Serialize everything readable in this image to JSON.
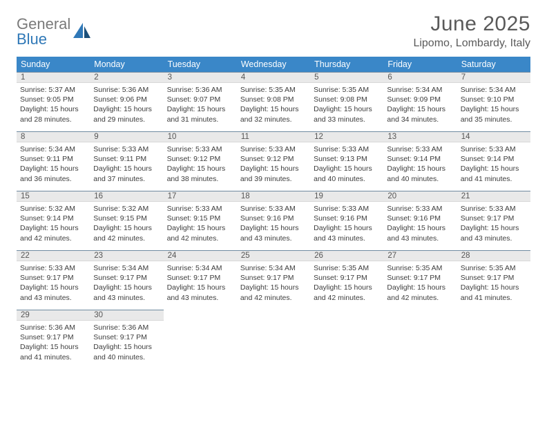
{
  "brand": {
    "word1": "General",
    "word2": "Blue",
    "word1_color": "#7a7a7a",
    "word2_color": "#2f78b7",
    "icon_color": "#2f78b7"
  },
  "header": {
    "month_title": "June 2025",
    "location": "Lipomo, Lombardy, Italy"
  },
  "colors": {
    "header_bg": "#3a87c8",
    "header_text": "#ffffff",
    "daynum_bg": "#e9e9e9",
    "daynum_border_top": "#6f8aa0",
    "body_text": "#3c3c3c",
    "page_bg": "#ffffff"
  },
  "weekdays": [
    "Sunday",
    "Monday",
    "Tuesday",
    "Wednesday",
    "Thursday",
    "Friday",
    "Saturday"
  ],
  "weeks": [
    [
      {
        "num": "1",
        "sunrise": "Sunrise: 5:37 AM",
        "sunset": "Sunset: 9:05 PM",
        "daylight": "Daylight: 15 hours and 28 minutes."
      },
      {
        "num": "2",
        "sunrise": "Sunrise: 5:36 AM",
        "sunset": "Sunset: 9:06 PM",
        "daylight": "Daylight: 15 hours and 29 minutes."
      },
      {
        "num": "3",
        "sunrise": "Sunrise: 5:36 AM",
        "sunset": "Sunset: 9:07 PM",
        "daylight": "Daylight: 15 hours and 31 minutes."
      },
      {
        "num": "4",
        "sunrise": "Sunrise: 5:35 AM",
        "sunset": "Sunset: 9:08 PM",
        "daylight": "Daylight: 15 hours and 32 minutes."
      },
      {
        "num": "5",
        "sunrise": "Sunrise: 5:35 AM",
        "sunset": "Sunset: 9:08 PM",
        "daylight": "Daylight: 15 hours and 33 minutes."
      },
      {
        "num": "6",
        "sunrise": "Sunrise: 5:34 AM",
        "sunset": "Sunset: 9:09 PM",
        "daylight": "Daylight: 15 hours and 34 minutes."
      },
      {
        "num": "7",
        "sunrise": "Sunrise: 5:34 AM",
        "sunset": "Sunset: 9:10 PM",
        "daylight": "Daylight: 15 hours and 35 minutes."
      }
    ],
    [
      {
        "num": "8",
        "sunrise": "Sunrise: 5:34 AM",
        "sunset": "Sunset: 9:11 PM",
        "daylight": "Daylight: 15 hours and 36 minutes."
      },
      {
        "num": "9",
        "sunrise": "Sunrise: 5:33 AM",
        "sunset": "Sunset: 9:11 PM",
        "daylight": "Daylight: 15 hours and 37 minutes."
      },
      {
        "num": "10",
        "sunrise": "Sunrise: 5:33 AM",
        "sunset": "Sunset: 9:12 PM",
        "daylight": "Daylight: 15 hours and 38 minutes."
      },
      {
        "num": "11",
        "sunrise": "Sunrise: 5:33 AM",
        "sunset": "Sunset: 9:12 PM",
        "daylight": "Daylight: 15 hours and 39 minutes."
      },
      {
        "num": "12",
        "sunrise": "Sunrise: 5:33 AM",
        "sunset": "Sunset: 9:13 PM",
        "daylight": "Daylight: 15 hours and 40 minutes."
      },
      {
        "num": "13",
        "sunrise": "Sunrise: 5:33 AM",
        "sunset": "Sunset: 9:14 PM",
        "daylight": "Daylight: 15 hours and 40 minutes."
      },
      {
        "num": "14",
        "sunrise": "Sunrise: 5:33 AM",
        "sunset": "Sunset: 9:14 PM",
        "daylight": "Daylight: 15 hours and 41 minutes."
      }
    ],
    [
      {
        "num": "15",
        "sunrise": "Sunrise: 5:32 AM",
        "sunset": "Sunset: 9:14 PM",
        "daylight": "Daylight: 15 hours and 42 minutes."
      },
      {
        "num": "16",
        "sunrise": "Sunrise: 5:32 AM",
        "sunset": "Sunset: 9:15 PM",
        "daylight": "Daylight: 15 hours and 42 minutes."
      },
      {
        "num": "17",
        "sunrise": "Sunrise: 5:33 AM",
        "sunset": "Sunset: 9:15 PM",
        "daylight": "Daylight: 15 hours and 42 minutes."
      },
      {
        "num": "18",
        "sunrise": "Sunrise: 5:33 AM",
        "sunset": "Sunset: 9:16 PM",
        "daylight": "Daylight: 15 hours and 43 minutes."
      },
      {
        "num": "19",
        "sunrise": "Sunrise: 5:33 AM",
        "sunset": "Sunset: 9:16 PM",
        "daylight": "Daylight: 15 hours and 43 minutes."
      },
      {
        "num": "20",
        "sunrise": "Sunrise: 5:33 AM",
        "sunset": "Sunset: 9:16 PM",
        "daylight": "Daylight: 15 hours and 43 minutes."
      },
      {
        "num": "21",
        "sunrise": "Sunrise: 5:33 AM",
        "sunset": "Sunset: 9:17 PM",
        "daylight": "Daylight: 15 hours and 43 minutes."
      }
    ],
    [
      {
        "num": "22",
        "sunrise": "Sunrise: 5:33 AM",
        "sunset": "Sunset: 9:17 PM",
        "daylight": "Daylight: 15 hours and 43 minutes."
      },
      {
        "num": "23",
        "sunrise": "Sunrise: 5:34 AM",
        "sunset": "Sunset: 9:17 PM",
        "daylight": "Daylight: 15 hours and 43 minutes."
      },
      {
        "num": "24",
        "sunrise": "Sunrise: 5:34 AM",
        "sunset": "Sunset: 9:17 PM",
        "daylight": "Daylight: 15 hours and 43 minutes."
      },
      {
        "num": "25",
        "sunrise": "Sunrise: 5:34 AM",
        "sunset": "Sunset: 9:17 PM",
        "daylight": "Daylight: 15 hours and 42 minutes."
      },
      {
        "num": "26",
        "sunrise": "Sunrise: 5:35 AM",
        "sunset": "Sunset: 9:17 PM",
        "daylight": "Daylight: 15 hours and 42 minutes."
      },
      {
        "num": "27",
        "sunrise": "Sunrise: 5:35 AM",
        "sunset": "Sunset: 9:17 PM",
        "daylight": "Daylight: 15 hours and 42 minutes."
      },
      {
        "num": "28",
        "sunrise": "Sunrise: 5:35 AM",
        "sunset": "Sunset: 9:17 PM",
        "daylight": "Daylight: 15 hours and 41 minutes."
      }
    ],
    [
      {
        "num": "29",
        "sunrise": "Sunrise: 5:36 AM",
        "sunset": "Sunset: 9:17 PM",
        "daylight": "Daylight: 15 hours and 41 minutes."
      },
      {
        "num": "30",
        "sunrise": "Sunrise: 5:36 AM",
        "sunset": "Sunset: 9:17 PM",
        "daylight": "Daylight: 15 hours and 40 minutes."
      },
      {
        "empty": true
      },
      {
        "empty": true
      },
      {
        "empty": true
      },
      {
        "empty": true
      },
      {
        "empty": true
      }
    ]
  ]
}
